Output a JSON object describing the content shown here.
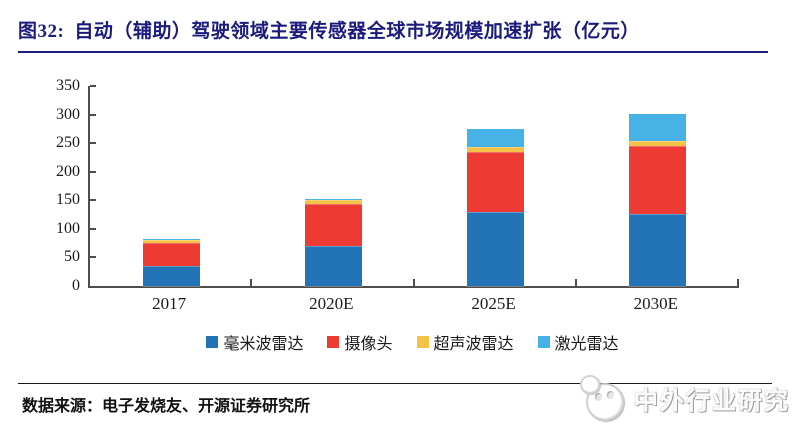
{
  "header": {
    "figure_label": "图32:",
    "title": "自动（辅助）驾驶领域主要传感器全球市场规模加速扩张（亿元）",
    "accent_color": "#1B1B7E"
  },
  "chart_data": {
    "type": "bar",
    "stacked": true,
    "title": "自动（辅助）驾驶领域主要传感器全球市场规模（亿元）",
    "xlabel": "",
    "ylabel": "",
    "categories": [
      "2017",
      "2020E",
      "2025E",
      "2030E"
    ],
    "series": [
      {
        "name": "毫米波雷达",
        "color": "#2374B6",
        "values": [
          35,
          70,
          130,
          126
        ]
      },
      {
        "name": "摄像头",
        "color": "#ED3B33",
        "values": [
          40,
          73,
          104,
          119
        ]
      },
      {
        "name": "超声波雷达",
        "color": "#F4C244",
        "values": [
          5,
          8,
          10,
          9
        ]
      },
      {
        "name": "激光雷达",
        "color": "#47B2E5",
        "values": [
          1,
          1,
          31,
          47
        ]
      }
    ],
    "totals_approx": [
      81,
      152,
      275,
      301
    ],
    "ylim": [
      0,
      350
    ],
    "yticks": [
      0,
      50,
      100,
      150,
      200,
      250,
      300,
      350
    ],
    "grid": false,
    "legend_position": "bottom",
    "axis_color": "#4d4d4d"
  },
  "footer": {
    "source": "数据来源：电子发烧友、开源证券研究所",
    "watermark_text": "中外行业研究"
  }
}
